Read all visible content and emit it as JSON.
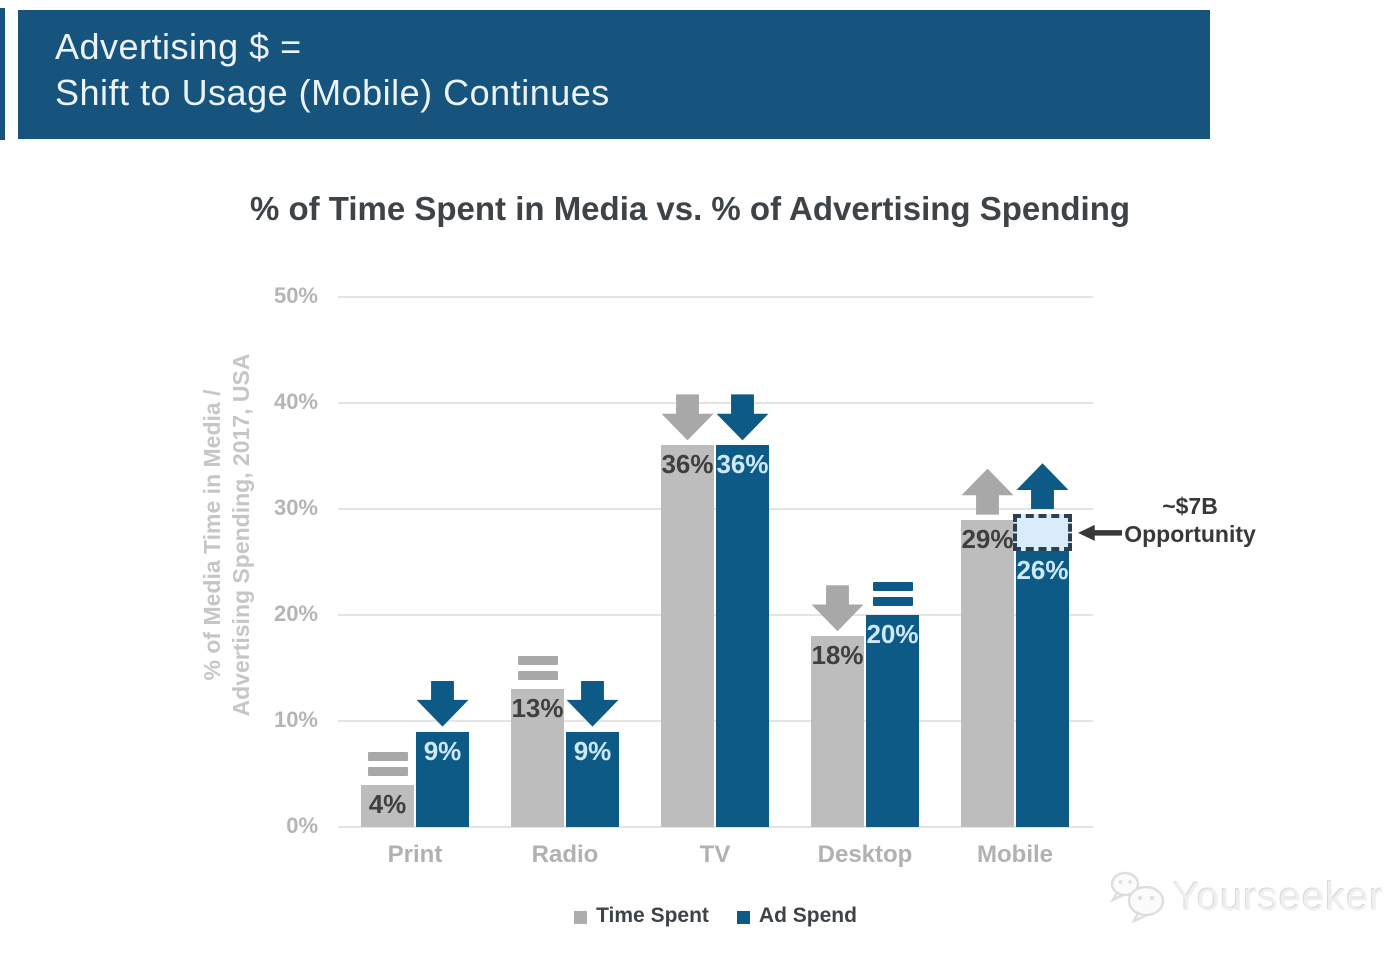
{
  "banner": {
    "line1": "Advertising $ =",
    "line2": "Shift to Usage (Mobile) Continues"
  },
  "chart_data": {
    "type": "bar",
    "title": "% of Time Spent in Media vs. % of Advertising Spending",
    "ylabel": [
      "% of Media Time in Media /",
      "Advertising Spending, 2017, USA"
    ],
    "categories": [
      "Print",
      "Radio",
      "TV",
      "Desktop",
      "Mobile"
    ],
    "series": [
      {
        "name": "Time Spent",
        "color": "#bdbdbd",
        "label_color": "#3f3f3f",
        "indicator_color": "#a8a8a8",
        "values": [
          4,
          13,
          36,
          18,
          29
        ],
        "value_labels": [
          "4%",
          "13%",
          "36%",
          "18%",
          "29%"
        ],
        "trend": [
          "flat",
          "flat",
          "down",
          "down",
          "up"
        ]
      },
      {
        "name": "Ad Spend",
        "color": "#0d5a87",
        "label_color": "#cfe8f7",
        "indicator_color": "#0d5a87",
        "values": [
          9,
          9,
          36,
          20,
          26
        ],
        "value_labels": [
          "9%",
          "9%",
          "36%",
          "20%",
          "26%"
        ],
        "trend": [
          "down",
          "down",
          "down",
          "flat",
          "up"
        ]
      }
    ],
    "y_axis": {
      "ticks": [
        0,
        10,
        20,
        30,
        40,
        50
      ],
      "tick_labels": [
        "0%",
        "10%",
        "20%",
        "30%",
        "40%",
        "50%"
      ]
    },
    "ylim": [
      0,
      50
    ],
    "grid": true,
    "legend_position": "bottom",
    "annotation": {
      "line1": "~$7B",
      "line2": "Opportunity",
      "category": "Mobile",
      "series": "Ad Spend",
      "box_bottom_pct": 26,
      "box_top_pct": 29.5,
      "box_fill": "#d8ecf9",
      "box_border": "#2b3e52"
    }
  },
  "legend": {
    "items": [
      {
        "label": "Time Spent",
        "color": "#aeaeae"
      },
      {
        "label": "Ad Spend",
        "color": "#0d5a87"
      }
    ]
  },
  "watermark": {
    "text": "Yourseeker",
    "icon": "wechat-bubbles-icon"
  },
  "colors": {
    "header_bg": "#17547d",
    "header_text": "#ebf3f9",
    "bar_gray": "#bdbdbd",
    "bar_blue": "#0d5a87",
    "gridline": "#e4e4e4",
    "annotation_text": "#383838"
  }
}
